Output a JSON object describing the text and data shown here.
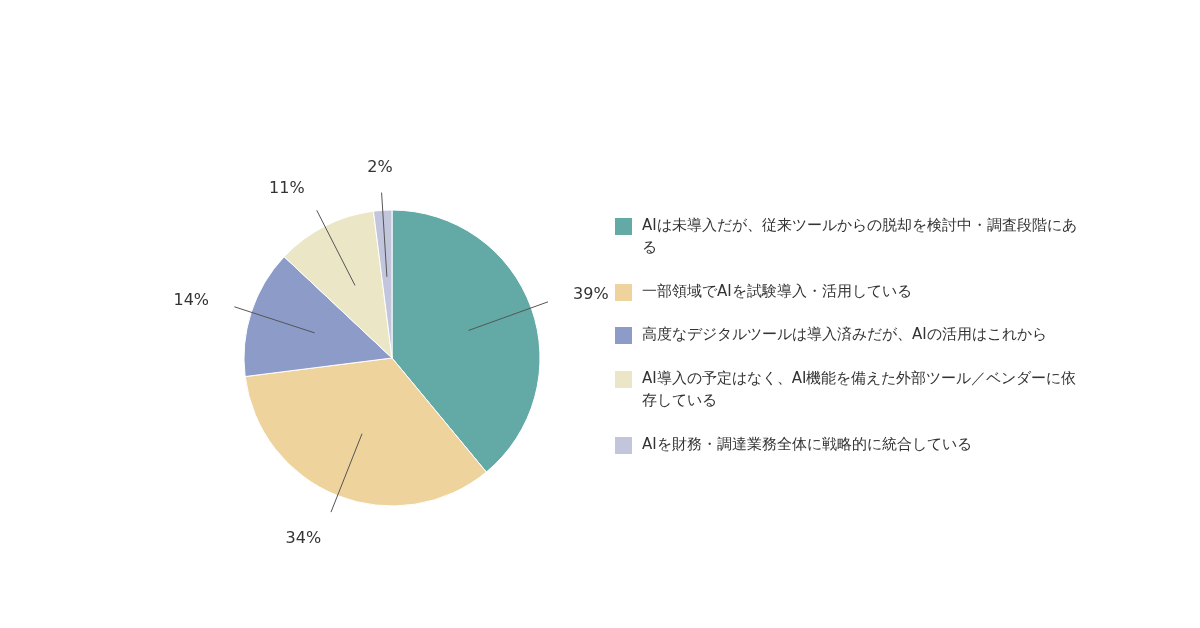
{
  "chart_data": {
    "type": "pie",
    "legend": "right",
    "categories": [
      "AIは未導入だが、従来ツールからの脱却を検討中・調査段階にある",
      "一部領域でAIを試験導入・活用している",
      "高度なデジタルツールは導入済みだが、AIの活用はこれから",
      "AI導入の予定はなく、AI機能を備えた外部ツール／ベンダーに依存している",
      "AIを財務・調達業務全体に戦略的に統合している"
    ],
    "values": [
      39,
      34,
      14,
      11,
      2
    ],
    "value_labels": [
      "39%",
      "34%",
      "14%",
      "11%",
      "2%"
    ],
    "colors": [
      "#63a9a5",
      "#eed49c",
      "#8d9bc9",
      "#ebe7c6",
      "#c2c5dc"
    ]
  }
}
